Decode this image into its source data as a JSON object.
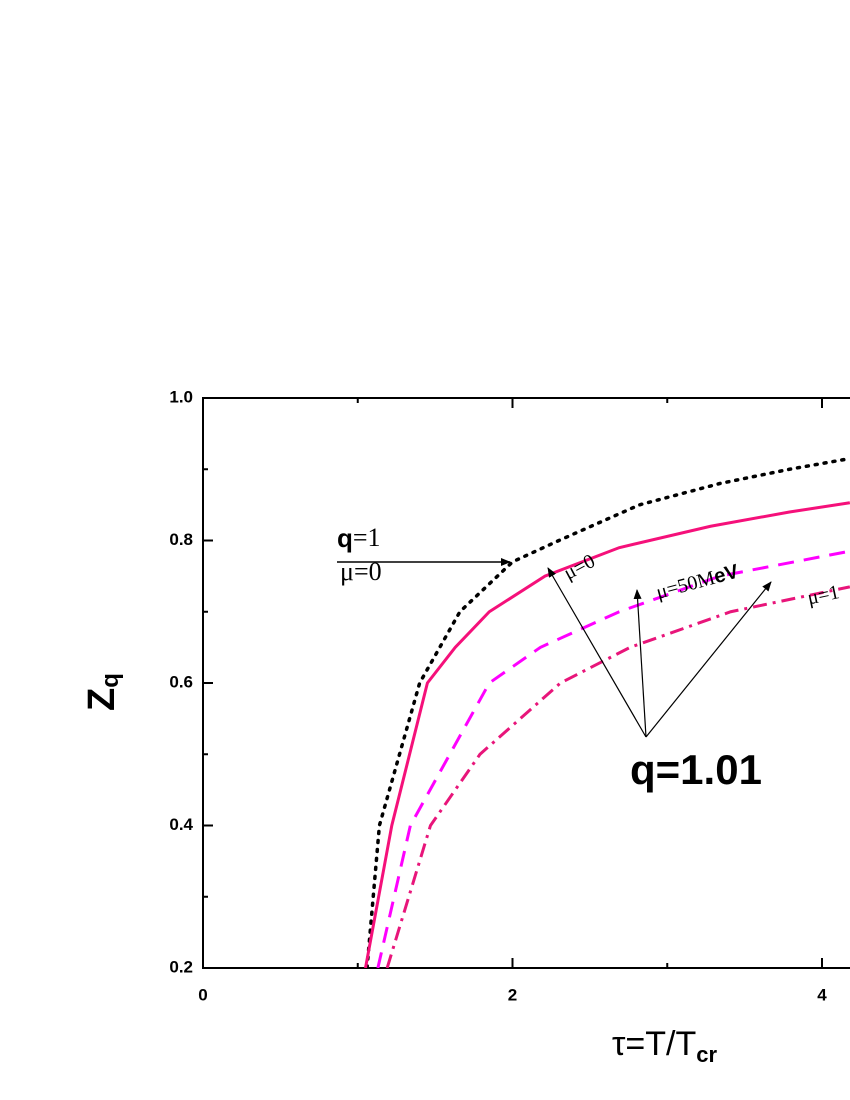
{
  "chart_data": {
    "type": "line",
    "ylabel": "Z",
    "ylabel_sub": "q",
    "xlabel": "τ=T/T",
    "xlabel_sub": "cr",
    "xlim": [
      0,
      5
    ],
    "ylim": [
      0.2,
      1.0
    ],
    "xticks": [
      0,
      2,
      4
    ],
    "xticks_minor": [
      1,
      3
    ],
    "yticks": [
      0.2,
      0.4,
      0.6,
      0.8,
      {
        "value": 1,
        "label": "1.0"
      }
    ],
    "yticks_minor": [
      0.3,
      0.5,
      0.7,
      0.9
    ],
    "series": [
      {
        "color": "#000000",
        "style": "dotted",
        "x": [
          1.06,
          1.14,
          1.4,
          1.66,
          2.0,
          2.3,
          2.82,
          3.34,
          3.79,
          4.18
        ],
        "values": [
          0.2,
          0.4,
          0.6,
          0.7,
          0.77,
          0.8,
          0.85,
          0.88,
          0.9,
          0.915
        ]
      },
      {
        "color": "#f5107a",
        "style": "solid",
        "x": [
          1.05,
          1.22,
          1.45,
          1.63,
          1.85,
          2.21,
          2.69,
          3.28,
          3.79,
          4.18
        ],
        "values": [
          0.2,
          0.4,
          0.6,
          0.65,
          0.7,
          0.75,
          0.79,
          0.82,
          0.84,
          0.853
        ]
      },
      {
        "color": "#ff00ff",
        "style": "dashed",
        "x": [
          1.13,
          1.34,
          1.85,
          2.18,
          2.69,
          3.34,
          4.18
        ],
        "values": [
          0.2,
          0.4,
          0.6,
          0.65,
          0.7,
          0.75,
          0.785
        ]
      },
      {
        "color": "#e8157a",
        "style": "dashdot",
        "x": [
          1.19,
          1.47,
          1.79,
          2.31,
          2.76,
          3.41,
          4.18
        ],
        "values": [
          0.2,
          0.4,
          0.5,
          0.6,
          0.65,
          0.7,
          0.735
        ]
      }
    ],
    "annotations": {
      "q1": "q",
      "q1_rest": "=1",
      "mu0_a": "μ=0",
      "mu0_b": "μ=0",
      "mu50": "μ=50M",
      "mu50_bold": "eV",
      "mu1": "μ=1",
      "q101": "q=1.01"
    }
  }
}
